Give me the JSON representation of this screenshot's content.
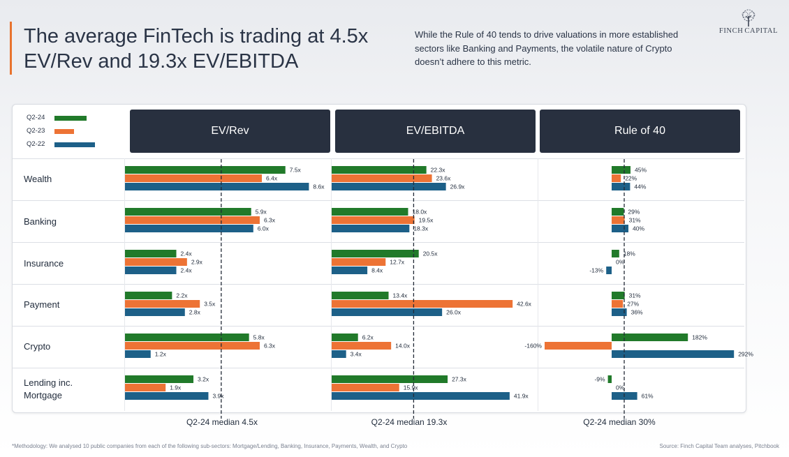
{
  "title_lines": [
    "The average FinTech is trading at 4.5x",
    "EV/Rev and 19.3x EV/EBITDA"
  ],
  "subtitle": "While the Rule of 40 tends to drive valuations in more established sectors like Banking and Payments, the volatile nature of Crypto doesn’t adhere to this metric.",
  "logo": {
    "left": "FINCH",
    "right": "CAPITAL"
  },
  "colors": {
    "Q2-24": "#217a2a",
    "Q2-23": "#ed7335",
    "Q2-22": "#1d6088",
    "header": "#28303f",
    "accent": "#e8732e"
  },
  "chart_data": {
    "type": "bar",
    "orientation": "horizontal",
    "legend": [
      "Q2-24",
      "Q2-23",
      "Q2-22"
    ],
    "legend_position": "top-left",
    "categories": [
      "Wealth",
      "Banking",
      "Insurance",
      "Payment",
      "Crypto",
      "Lending inc.\nMortgage"
    ],
    "panels": [
      {
        "title": "EV/Rev",
        "median_label": "Q2-24 median 4.5x",
        "median": 4.5,
        "xlim": [
          0,
          9.5
        ],
        "series": [
          {
            "name": "Q2-24",
            "values": [
              7.5,
              5.9,
              2.4,
              2.2,
              5.8,
              3.2
            ],
            "labels": [
              "7.5x",
              "5.9x",
              "2.4x",
              "2.2x",
              "5.8x",
              "3.2x"
            ]
          },
          {
            "name": "Q2-23",
            "values": [
              6.4,
              6.3,
              2.9,
              3.5,
              6.3,
              1.9
            ],
            "labels": [
              "6.4x",
              "6.3x",
              "2.9x",
              "3.5x",
              "6.3x",
              "1.9x"
            ]
          },
          {
            "name": "Q2-22",
            "values": [
              8.6,
              6.0,
              2.4,
              2.8,
              1.2,
              3.9
            ],
            "labels": [
              "8.6x",
              "6.0x",
              "2.4x",
              "2.8x",
              "1.2x",
              "3.9x"
            ]
          }
        ]
      },
      {
        "title": "EV/EBITDA",
        "median_label": "Q2-24 median 19.3x",
        "median": 19.3,
        "xlim": [
          0,
          48
        ],
        "series": [
          {
            "name": "Q2-24",
            "values": [
              22.3,
              18.0,
              20.5,
              13.4,
              6.2,
              27.3
            ],
            "labels": [
              "22.3x",
              "18.0x",
              "20.5x",
              "13.4x",
              "6.2x",
              "27.3x"
            ]
          },
          {
            "name": "Q2-23",
            "values": [
              23.6,
              19.5,
              12.7,
              42.6,
              14.0,
              15.9
            ],
            "labels": [
              "23.6x",
              "19.5x",
              "12.7x",
              "42.6x",
              "14.0x",
              "15.9x"
            ]
          },
          {
            "name": "Q2-22",
            "values": [
              26.9,
              18.3,
              8.4,
              26.0,
              3.4,
              41.9
            ],
            "labels": [
              "26.9x",
              "18.3x",
              "8.4x",
              "26.0x",
              "3.4x",
              "41.9x"
            ]
          }
        ]
      },
      {
        "title": "Rule of 40",
        "median_label": "Q2-24 median 30%",
        "median": 30,
        "xlim": [
          -175,
          310
        ],
        "series": [
          {
            "name": "Q2-24",
            "values": [
              45,
              29,
              18,
              31,
              182,
              -9
            ],
            "labels": [
              "45%",
              "29%",
              "18%",
              "31%",
              "182%",
              "-9%"
            ]
          },
          {
            "name": "Q2-23",
            "values": [
              22,
              31,
              0,
              27,
              -160,
              0
            ],
            "labels": [
              "22%",
              "31%",
              "0%",
              "27%",
              "-160%",
              "0%"
            ]
          },
          {
            "name": "Q2-22",
            "values": [
              44,
              40,
              -13,
              36,
              292,
              61
            ],
            "labels": [
              "44%",
              "40%",
              "-13%",
              "36%",
              "292%",
              "61%"
            ]
          }
        ]
      }
    ]
  },
  "footnote": "*Methodology: We analysed 10 public companies from each of the following sub-sectors: Mortgage/Lending, Banking, Insurance, Payments, Wealth, and Crypto",
  "source": "Source: Finch Capital Team analyses, Pitchbook"
}
